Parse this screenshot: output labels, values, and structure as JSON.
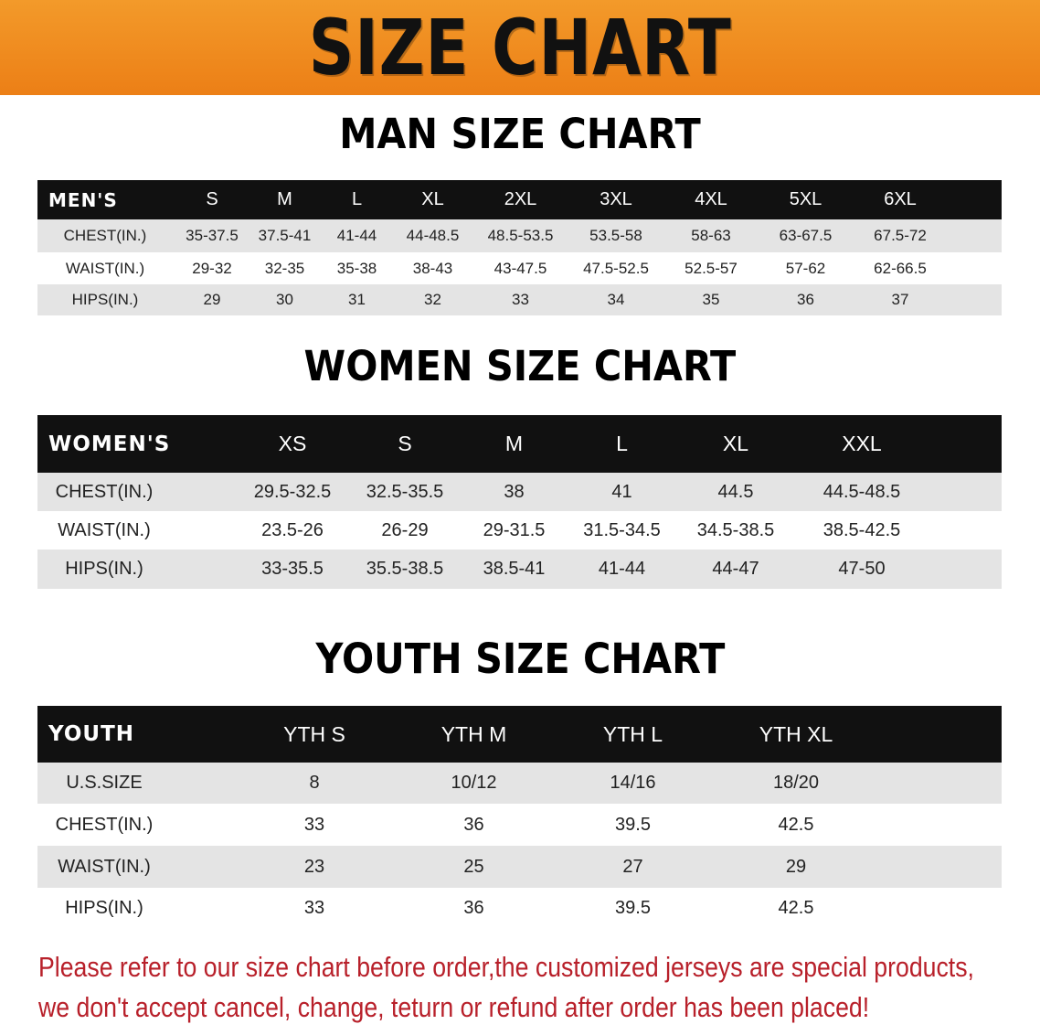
{
  "banner": {
    "title": "SIZE CHART",
    "color": "#ef8a1e"
  },
  "men": {
    "title": "MAN SIZE CHART",
    "header": [
      "MEN'S",
      "S",
      "M",
      "L",
      "XL",
      "2XL",
      "3XL",
      "4XL",
      "5XL",
      "6XL"
    ],
    "rows": [
      [
        "CHEST(IN.)",
        "35-37.5",
        "37.5-41",
        "41-44",
        "44-48.5",
        "48.5-53.5",
        "53.5-58",
        "58-63",
        "63-67.5",
        "67.5-72"
      ],
      [
        "WAIST(IN.)",
        "29-32",
        "32-35",
        "35-38",
        "38-43",
        "43-47.5",
        "47.5-52.5",
        "52.5-57",
        "57-62",
        "62-66.5"
      ],
      [
        "HIPS(IN.)",
        "29",
        "30",
        "31",
        "32",
        "33",
        "34",
        "35",
        "36",
        "37"
      ]
    ]
  },
  "women": {
    "title": "WOMEN SIZE CHART",
    "header": [
      "WOMEN'S",
      "XS",
      "S",
      "M",
      "L",
      "XL",
      "XXL"
    ],
    "rows": [
      [
        "CHEST(IN.)",
        "29.5-32.5",
        "32.5-35.5",
        "38",
        "41",
        "44.5",
        "44.5-48.5"
      ],
      [
        "WAIST(IN.)",
        "23.5-26",
        "26-29",
        "29-31.5",
        "31.5-34.5",
        "34.5-38.5",
        "38.5-42.5"
      ],
      [
        "HIPS(IN.)",
        "33-35.5",
        "35.5-38.5",
        "38.5-41",
        "41-44",
        "44-47",
        "47-50"
      ]
    ]
  },
  "youth": {
    "title": "YOUTH SIZE CHART",
    "header": [
      "YOUTH",
      "YTH S",
      "YTH M",
      "YTH L",
      "YTH XL"
    ],
    "rows": [
      [
        "U.S.SIZE",
        "8",
        "10/12",
        "14/16",
        "18/20"
      ],
      [
        "CHEST(IN.)",
        "33",
        "36",
        "39.5",
        "42.5"
      ],
      [
        "WAIST(IN.)",
        "23",
        "25",
        "27",
        "29"
      ],
      [
        "HIPS(IN.)",
        "33",
        "36",
        "39.5",
        "42.5"
      ]
    ]
  },
  "note": {
    "line1": "Please refer to our size chart before order,the customized jerseys are special products,",
    "line2": "we don't accept cancel, change, teturn or refund after order has been placed!",
    "color": "#b8202a"
  }
}
